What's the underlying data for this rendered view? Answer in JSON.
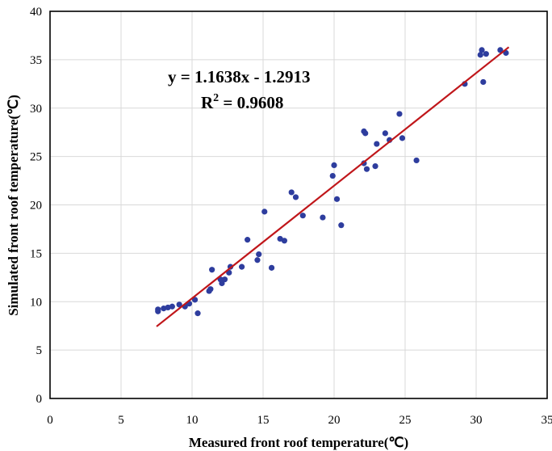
{
  "chart_data": {
    "type": "scatter",
    "xlabel": "Measured front roof temperature(℃)",
    "ylabel": "Simulated front roof temperature(℃)",
    "xlim": [
      0,
      35
    ],
    "ylim": [
      0,
      40
    ],
    "xticks": [
      0,
      5,
      10,
      15,
      20,
      25,
      30,
      35
    ],
    "yticks": [
      0,
      5,
      10,
      15,
      20,
      25,
      30,
      35,
      40
    ],
    "xtick_labels": [
      "0",
      "5",
      "10",
      "15",
      "20",
      "25",
      "30",
      "35"
    ],
    "ytick_labels": [
      "0",
      "5",
      "10",
      "15",
      "20",
      "25",
      "30",
      "35",
      "40"
    ],
    "grid": true,
    "legend": "none",
    "colors": {
      "points": "#2e3d9e",
      "trendline": "#c0161a",
      "grid": "#d9d9d9",
      "frame": "#000000"
    },
    "trendline": {
      "slope": 1.1638,
      "intercept": -1.2913,
      "x_range": [
        7.5,
        32.3
      ],
      "equation_label": "y = 1.1638x - 1.2913",
      "r2_prefix": "R",
      "r2_sup": "2",
      "r2_value": " = 0.9608"
    },
    "points": [
      [
        7.6,
        9.0
      ],
      [
        7.6,
        9.2
      ],
      [
        8.0,
        9.3
      ],
      [
        8.3,
        9.4
      ],
      [
        8.6,
        9.5
      ],
      [
        9.1,
        9.7
      ],
      [
        9.5,
        9.5
      ],
      [
        9.8,
        9.8
      ],
      [
        10.2,
        10.2
      ],
      [
        10.4,
        8.8
      ],
      [
        11.2,
        11.1
      ],
      [
        11.3,
        11.3
      ],
      [
        11.4,
        13.3
      ],
      [
        12.0,
        12.3
      ],
      [
        12.1,
        11.9
      ],
      [
        12.3,
        12.3
      ],
      [
        12.6,
        13.0
      ],
      [
        12.7,
        13.6
      ],
      [
        13.5,
        13.6
      ],
      [
        13.9,
        16.4
      ],
      [
        14.6,
        14.3
      ],
      [
        14.7,
        14.9
      ],
      [
        15.1,
        19.3
      ],
      [
        15.6,
        13.5
      ],
      [
        16.2,
        16.5
      ],
      [
        16.5,
        16.3
      ],
      [
        17.0,
        21.3
      ],
      [
        17.3,
        20.8
      ],
      [
        17.8,
        18.9
      ],
      [
        19.2,
        18.7
      ],
      [
        19.9,
        23.0
      ],
      [
        20.0,
        24.1
      ],
      [
        20.2,
        20.6
      ],
      [
        20.5,
        17.9
      ],
      [
        22.1,
        24.3
      ],
      [
        22.1,
        27.6
      ],
      [
        22.2,
        27.4
      ],
      [
        22.3,
        23.7
      ],
      [
        22.9,
        24.0
      ],
      [
        23.0,
        26.3
      ],
      [
        23.6,
        27.4
      ],
      [
        23.9,
        26.7
      ],
      [
        24.6,
        29.4
      ],
      [
        24.8,
        26.9
      ],
      [
        25.8,
        24.6
      ],
      [
        29.2,
        32.5
      ],
      [
        30.3,
        35.5
      ],
      [
        30.4,
        36.0
      ],
      [
        30.5,
        32.7
      ],
      [
        30.7,
        35.6
      ],
      [
        31.7,
        36.0
      ],
      [
        32.1,
        35.7
      ]
    ]
  }
}
